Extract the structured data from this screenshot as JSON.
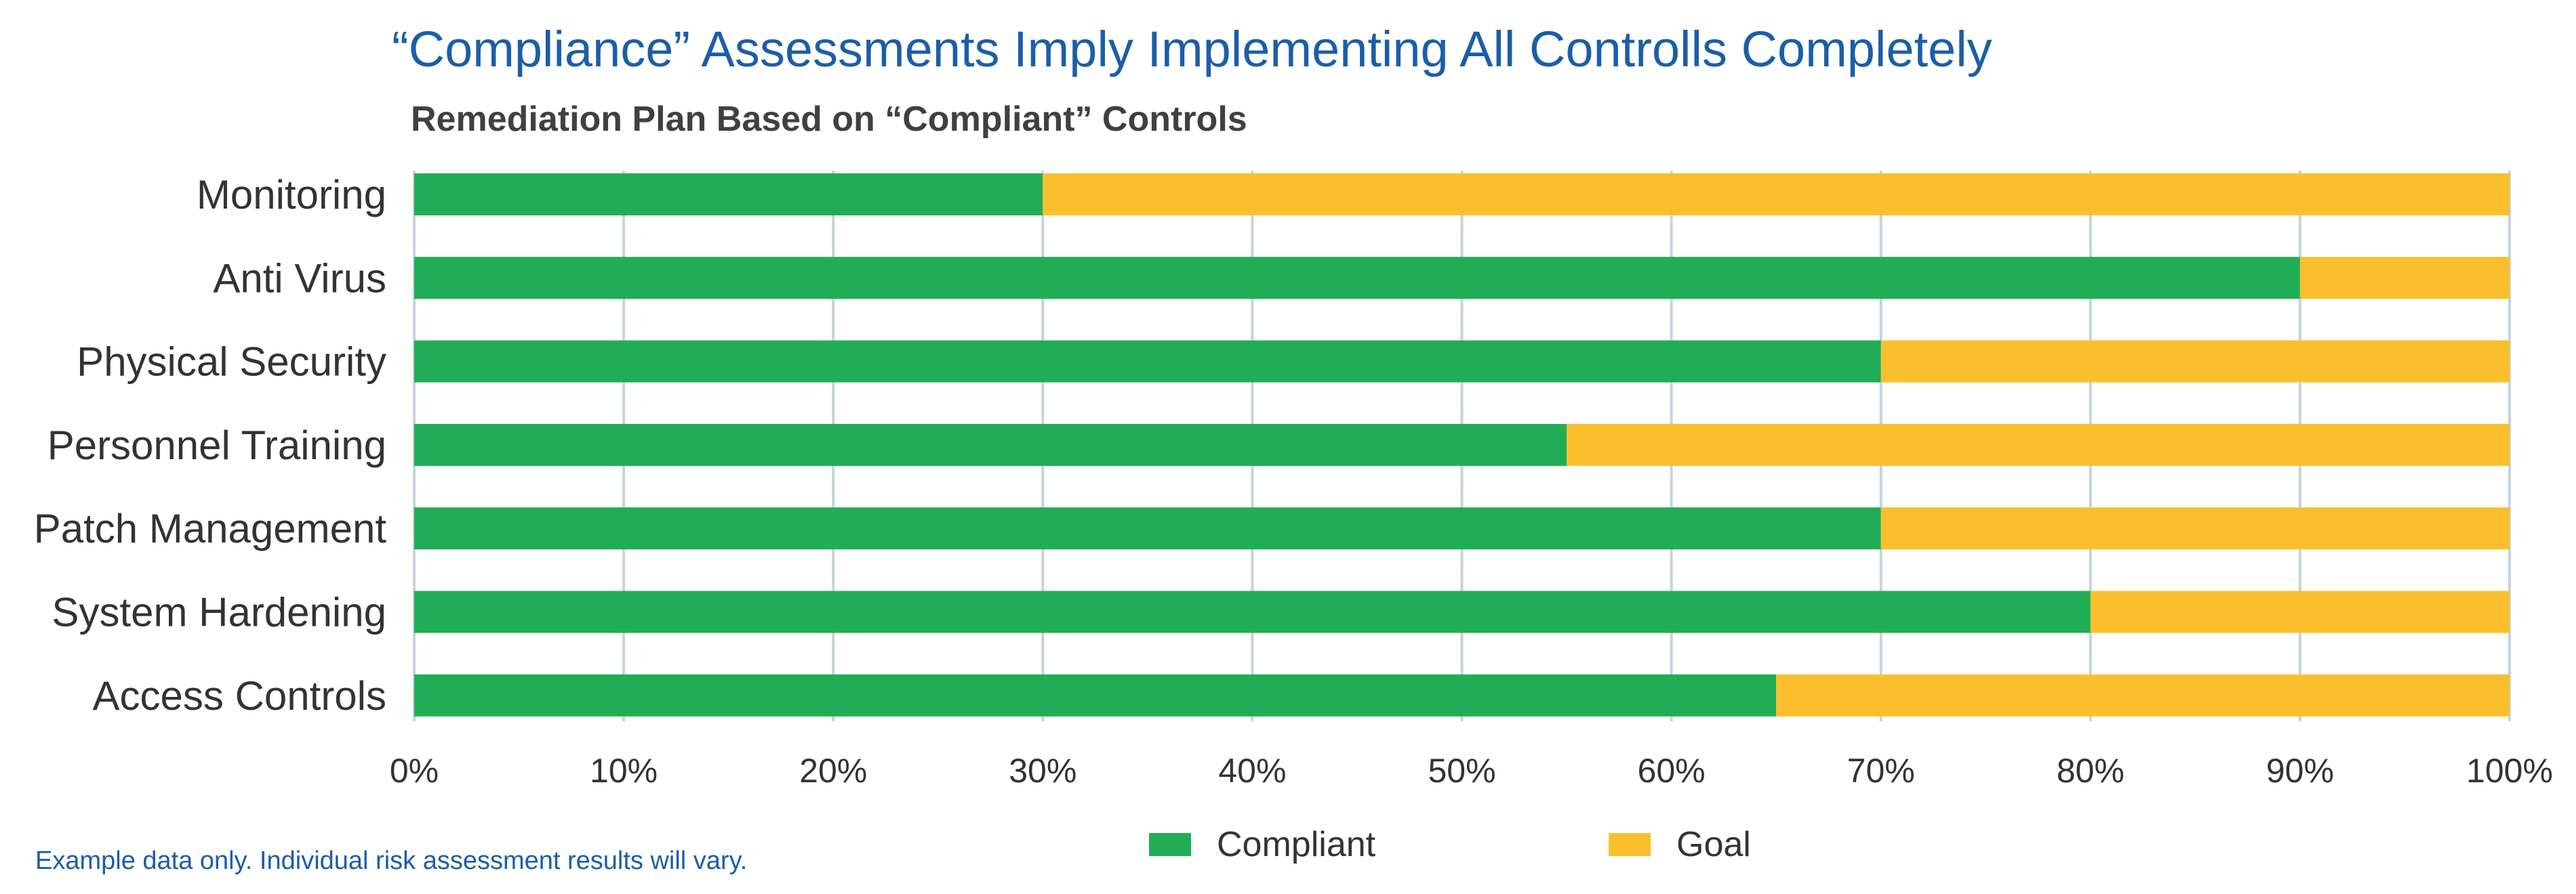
{
  "chart_data": {
    "type": "bar",
    "orientation": "horizontal",
    "stacked": true,
    "title": "“Compliance” Assessments Imply Implementing All Controlls Completely",
    "subtitle": "Remediation Plan Based on “Compliant” Controls",
    "categories": [
      "Monitoring",
      "Anti Virus",
      "Physical Security",
      "Personnel Training",
      "Patch Management",
      "System Hardening",
      "Access Controls"
    ],
    "series": [
      {
        "name": "Compliant",
        "color": "#21ad55",
        "values": [
          30,
          90,
          70,
          55,
          70,
          80,
          65
        ]
      },
      {
        "name": "Goal",
        "color": "#fbbf2d",
        "values": [
          70,
          10,
          30,
          45,
          30,
          20,
          35
        ]
      }
    ],
    "x_ticks": [
      "0%",
      "10%",
      "20%",
      "30%",
      "40%",
      "50%",
      "60%",
      "70%",
      "80%",
      "90%",
      "100%"
    ],
    "xlim": [
      0,
      100
    ],
    "grid": true,
    "legend_position": "bottom",
    "gridline_color": "#c5d4dc"
  },
  "footnote": "Example data only. Individual risk assessment results will vary."
}
